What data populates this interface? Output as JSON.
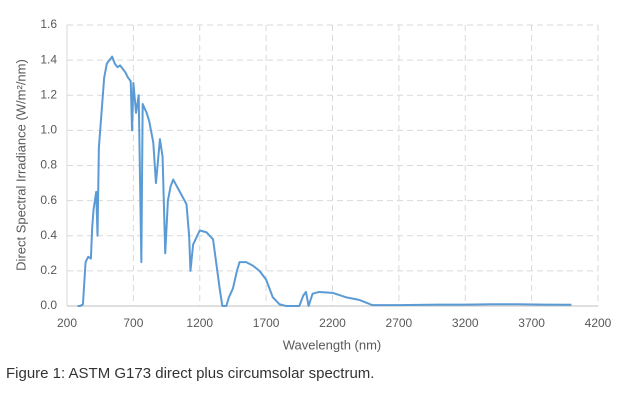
{
  "chart_data": {
    "type": "line",
    "y_label": "Direct Spectral Irradiance (W/m²/nm)",
    "x_label": "Wavelength (nm)",
    "caption": "Figure 1: ASTM G173 direct plus circumsolar spectrum.",
    "color": "#5b9bd5",
    "grid": true,
    "xlim": [
      200,
      4200
    ],
    "xticks": [
      200,
      700,
      1200,
      1700,
      2200,
      2700,
      3200,
      3700,
      4200
    ],
    "ylim": [
      0,
      1.6
    ],
    "yticks": [
      {
        "value": 0,
        "label": "0.0"
      },
      0.2,
      0.4,
      0.6,
      0.8,
      {
        "value": 1,
        "label": "1.0"
      },
      1.2,
      1.4,
      1.6
    ],
    "x": [
      280,
      300,
      320,
      340,
      360,
      380,
      390,
      400,
      410,
      420,
      430,
      440,
      450,
      460,
      480,
      500,
      520,
      540,
      560,
      580,
      600,
      620,
      640,
      660,
      680,
      690,
      700,
      720,
      740,
      760,
      770,
      800,
      820,
      850,
      870,
      900,
      920,
      940,
      960,
      980,
      1000,
      1050,
      1100,
      1120,
      1130,
      1150,
      1200,
      1250,
      1300,
      1350,
      1370,
      1400,
      1420,
      1450,
      1480,
      1500,
      1550,
      1600,
      1650,
      1700,
      1750,
      1800,
      1850,
      1950,
      1980,
      2000,
      2020,
      2050,
      2100,
      2200,
      2300,
      2400,
      2450,
      2500,
      2700,
      3000,
      3200,
      3400,
      3600,
      3800,
      4000
    ],
    "values": [
      0,
      0,
      0.01,
      0.25,
      0.28,
      0.27,
      0.45,
      0.55,
      0.6,
      0.65,
      0.4,
      0.9,
      1.0,
      1.1,
      1.3,
      1.38,
      1.4,
      1.42,
      1.38,
      1.36,
      1.37,
      1.35,
      1.33,
      1.3,
      1.28,
      1.0,
      1.27,
      1.1,
      1.2,
      0.25,
      1.15,
      1.1,
      1.05,
      0.93,
      0.7,
      0.95,
      0.85,
      0.3,
      0.6,
      0.68,
      0.72,
      0.65,
      0.58,
      0.4,
      0.2,
      0.35,
      0.43,
      0.42,
      0.38,
      0.1,
      0,
      0,
      0.05,
      0.1,
      0.2,
      0.25,
      0.25,
      0.23,
      0.2,
      0.15,
      0.05,
      0.01,
      0,
      0,
      0.06,
      0.08,
      0,
      0.07,
      0.08,
      0.075,
      0.05,
      0.035,
      0.02,
      0.005,
      0.005,
      0.008,
      0.008,
      0.01,
      0.01,
      0.008,
      0.007
    ]
  }
}
